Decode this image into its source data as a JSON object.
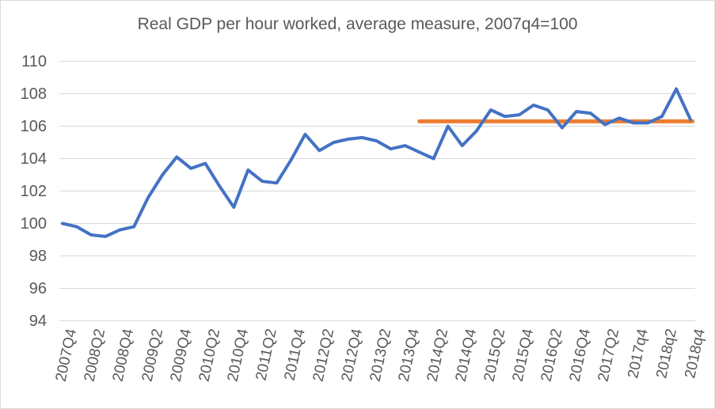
{
  "title": "Real GDP per hour worked, average measure, 2007q4=100",
  "colors": {
    "series": "#4472C4",
    "reference": "#ED7D31",
    "grid": "#D9D9D9",
    "text": "#595959",
    "border": "#D9D9D9",
    "background": "#FFFFFF"
  },
  "y_axis": {
    "ticks": [
      110,
      108,
      106,
      104,
      102,
      100,
      98,
      96,
      94
    ]
  },
  "x_axis": {
    "labels": [
      "2007Q4",
      "2008Q2",
      "2008Q4",
      "2009Q2",
      "2009Q4",
      "2010Q2",
      "2010Q4",
      "2011Q2",
      "2011Q4",
      "2012Q2",
      "2012Q4",
      "2013Q2",
      "2013Q4",
      "2014Q2",
      "2014Q4",
      "2015Q2",
      "2015Q4",
      "2016Q2",
      "2016Q4",
      "2017Q2",
      "2017q4",
      "2018q2",
      "2018q4"
    ]
  },
  "chart_data": {
    "type": "line",
    "title": "Real GDP per hour worked, average measure, 2007q4=100",
    "xlabel": "",
    "ylabel": "",
    "ylim": [
      94,
      110
    ],
    "y_tick_step": 2,
    "grid": true,
    "legend": false,
    "x": [
      "2007Q4",
      "2008Q1",
      "2008Q2",
      "2008Q3",
      "2008Q4",
      "2009Q1",
      "2009Q2",
      "2009Q3",
      "2009Q4",
      "2010Q1",
      "2010Q2",
      "2010Q3",
      "2010Q4",
      "2011Q1",
      "2011Q2",
      "2011Q3",
      "2011Q4",
      "2012Q1",
      "2012Q2",
      "2012Q3",
      "2012Q4",
      "2013Q1",
      "2013Q2",
      "2013Q3",
      "2013Q4",
      "2014Q1",
      "2014Q2",
      "2014Q3",
      "2014Q4",
      "2015Q1",
      "2015Q2",
      "2015Q3",
      "2015Q4",
      "2016Q1",
      "2016Q2",
      "2016Q3",
      "2016Q4",
      "2017Q1",
      "2017Q2",
      "2017Q3",
      "2017Q4",
      "2018Q1",
      "2018Q2",
      "2018Q3",
      "2018Q4"
    ],
    "series": [
      {
        "name": "Real GDP per hour worked (2007q4=100)",
        "color": "#4472C4",
        "values": [
          100.0,
          99.8,
          99.3,
          99.2,
          99.6,
          99.8,
          101.6,
          103.0,
          104.1,
          103.4,
          103.7,
          102.3,
          101.0,
          103.3,
          102.6,
          102.5,
          103.9,
          105.5,
          104.5,
          105.0,
          105.2,
          105.3,
          105.1,
          104.6,
          104.8,
          104.4,
          104.0,
          106.0,
          104.8,
          105.7,
          107.0,
          106.6,
          106.7,
          107.3,
          107.0,
          105.9,
          106.9,
          106.8,
          106.1,
          106.5,
          106.2,
          106.2,
          106.6,
          108.3,
          106.4
        ]
      }
    ],
    "reference_line": {
      "value": 106.3,
      "x_start": "2014Q1",
      "x_end": "2018Q4",
      "color": "#ED7D31"
    }
  }
}
